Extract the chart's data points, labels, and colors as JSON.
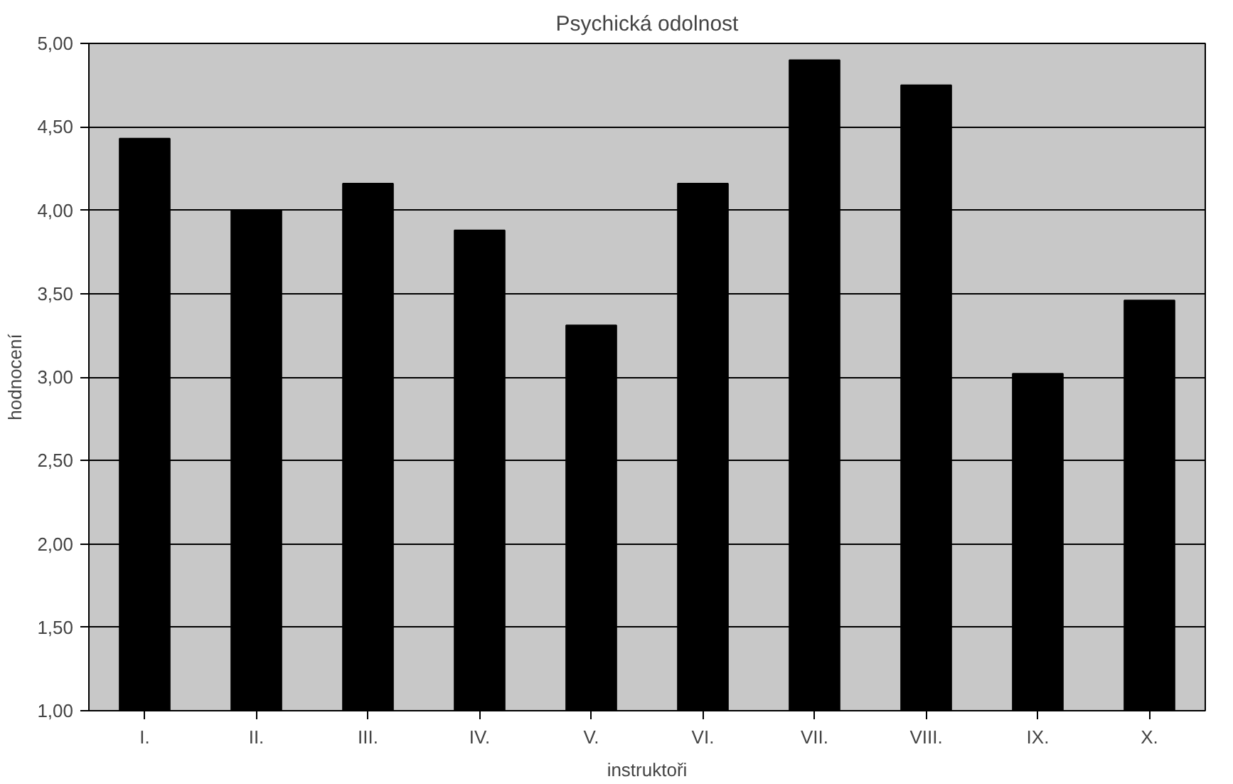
{
  "chart_data": {
    "type": "bar",
    "title": "Psychická odolnost",
    "xlabel": "instruktoři",
    "ylabel": "hodnocení",
    "categories": [
      "I.",
      "II.",
      "III.",
      "IV.",
      "V.",
      "VI.",
      "VII.",
      "VIII.",
      "IX.",
      "X."
    ],
    "values": [
      4.43,
      4.0,
      4.16,
      3.88,
      3.31,
      4.16,
      4.9,
      4.75,
      3.02,
      3.46
    ],
    "color": "#000000",
    "ylim": [
      1,
      5
    ],
    "yticks": [
      {
        "value": 1,
        "label": "1,00"
      },
      {
        "value": 1.5,
        "label": "1,50"
      },
      {
        "value": 2,
        "label": "2,00"
      },
      {
        "value": 2.5,
        "label": "2,50"
      },
      {
        "value": 3,
        "label": "3,00"
      },
      {
        "value": 3.5,
        "label": "3,50"
      },
      {
        "value": 4,
        "label": "4,00"
      },
      {
        "value": 4.5,
        "label": "4,50"
      },
      {
        "value": 5,
        "label": "5,00"
      }
    ],
    "grid": "y"
  }
}
